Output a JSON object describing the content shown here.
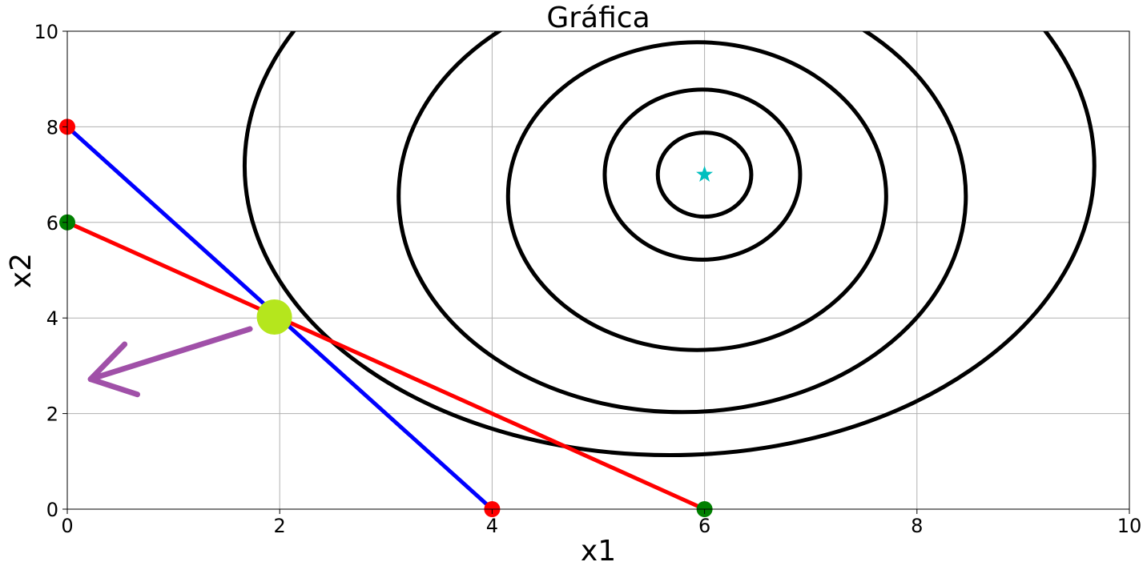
{
  "chart_data": {
    "type": "line",
    "title": "Gráfica",
    "xlabel": "x1",
    "ylabel": "x2",
    "xlim": [
      0,
      10
    ],
    "ylim": [
      0,
      10
    ],
    "xticks": [
      0,
      2,
      4,
      6,
      8,
      10
    ],
    "yticks": [
      0,
      2,
      4,
      6,
      8,
      10
    ],
    "grid": true,
    "legend": "none",
    "series": [
      {
        "color": "#0000ff",
        "x": [
          0,
          4
        ],
        "y": [
          8,
          0
        ]
      },
      {
        "color": "#ff0000",
        "x": [
          0,
          6
        ],
        "y": [
          6,
          0
        ]
      }
    ],
    "endpoints": [
      {
        "x": 0,
        "y": 8,
        "color": "#ff0000"
      },
      {
        "x": 4,
        "y": 0,
        "color": "#ff0000"
      },
      {
        "x": 0,
        "y": 6,
        "color": "#008000"
      },
      {
        "x": 6,
        "y": 0,
        "color": "#008000"
      }
    ],
    "optimum_point": {
      "x": 1.95,
      "y": 4.02,
      "color": "#b5e61d"
    },
    "target_point": {
      "x": 6,
      "y": 7,
      "color": "#00bfbf",
      "marker": "star"
    },
    "contours": [
      {
        "cx": 6.0,
        "cy": 7.0,
        "rx": 0.44,
        "ry": 0.88
      },
      {
        "cx": 5.98,
        "cy": 7.0,
        "rx": 0.92,
        "ry": 1.78
      },
      {
        "cx": 5.93,
        "cy": 6.55,
        "rx": 1.78,
        "ry": 3.22
      },
      {
        "cx": 5.79,
        "cy": 6.55,
        "rx": 2.67,
        "ry": 4.52
      },
      {
        "cx": 5.67,
        "cy": 7.18,
        "rx": 4.0,
        "ry": 6.05
      }
    ],
    "direction_arrow": {
      "color": "#a050a8",
      "from": {
        "x": 1.72,
        "y": 3.77
      },
      "to": {
        "x": 0.22,
        "y": 2.72
      },
      "head_a": {
        "x": 0.54,
        "y": 3.45
      },
      "head_b": {
        "x": 0.66,
        "y": 2.4
      }
    }
  }
}
